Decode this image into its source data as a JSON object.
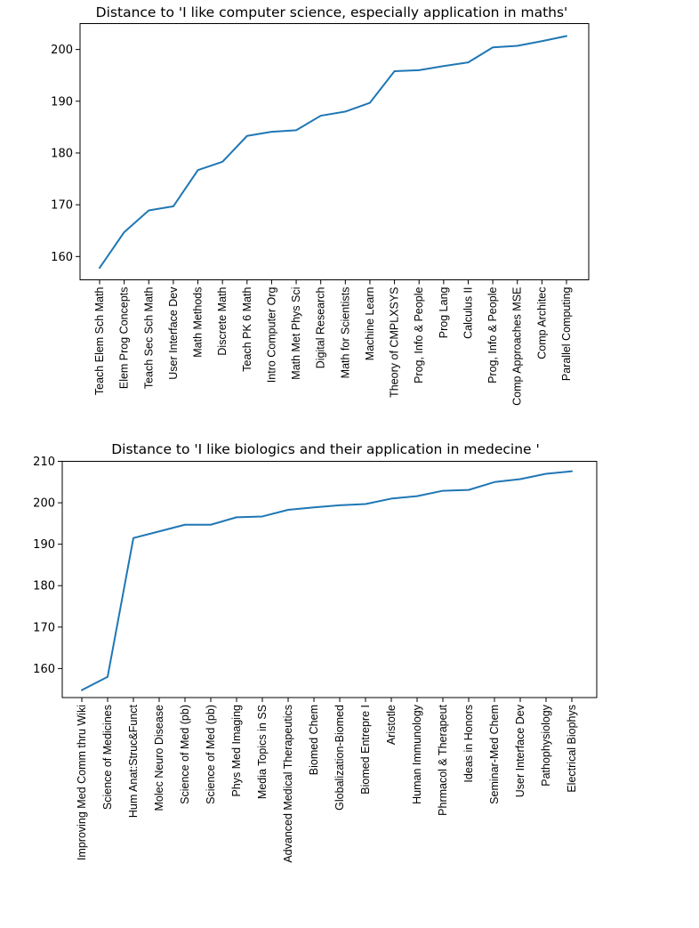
{
  "chart_data": [
    {
      "type": "line",
      "title": "Distance to 'I like computer science, especially application in maths'",
      "xlabel": "",
      "ylabel": "",
      "ylim": [
        155.5,
        205.0
      ],
      "yticks": [
        160,
        170,
        180,
        190,
        200
      ],
      "grid": false,
      "categories": [
        "Teach Elem Sch Math",
        "Elem Prog Concepts",
        "Teach Sec Sch Math",
        "User Interface Dev",
        "Math Methods",
        "Discrete Math",
        "Teach PK 6 Math",
        "Intro Computer Org",
        "Math Met Phys Sci",
        "Digital Research",
        "Math for Scientists",
        "Machine Learn",
        "Theory of CMPLXSYS",
        "Prog, Info & People",
        "Prog Lang",
        "Calculus II",
        "Prog, Info & People",
        "Comp Approaches MSE",
        "Comp Architec",
        "Parallel Computing"
      ],
      "series": [
        {
          "values": [
            157.8,
            164.7,
            168.9,
            169.7,
            176.7,
            178.3,
            183.3,
            184.1,
            184.4,
            187.2,
            188.0,
            189.7,
            195.8,
            196.0,
            196.8,
            197.5,
            200.4,
            200.7,
            201.6,
            202.6
          ]
        }
      ]
    },
    {
      "type": "line",
      "title": "Distance to 'I like biologics and their application in medecine '",
      "xlabel": "",
      "ylabel": "",
      "ylim": [
        153.0,
        210.0
      ],
      "yticks": [
        160,
        170,
        180,
        190,
        200,
        210
      ],
      "grid": false,
      "categories": [
        "Improving Med Comm thru Wiki",
        "Science of Medicines",
        "Hum Anat:Struc&Funct",
        "Molec Neuro Disease",
        "Science of Med (pb)",
        "Science of Med (pb)",
        "Phys Med Imaging",
        "Media Topics in SS",
        "Advanced Medical Therapeutics",
        "Biomed Chem",
        "Globalization-Biomed",
        "Biomed Entrepre I",
        "Aristotle",
        "Human Immunology",
        "Phrmacol & Therapeut",
        "Ideas in Honors",
        "Seminar-Med Chem",
        "User Interface Dev",
        "Pathophysiology",
        "Electrical Biophys"
      ],
      "series": [
        {
          "values": [
            154.8,
            158.0,
            191.5,
            193.1,
            194.7,
            194.7,
            196.5,
            196.7,
            198.3,
            198.9,
            199.4,
            199.7,
            201.0,
            201.6,
            202.9,
            203.1,
            205.0,
            205.7,
            207.0,
            207.6
          ]
        }
      ]
    }
  ]
}
